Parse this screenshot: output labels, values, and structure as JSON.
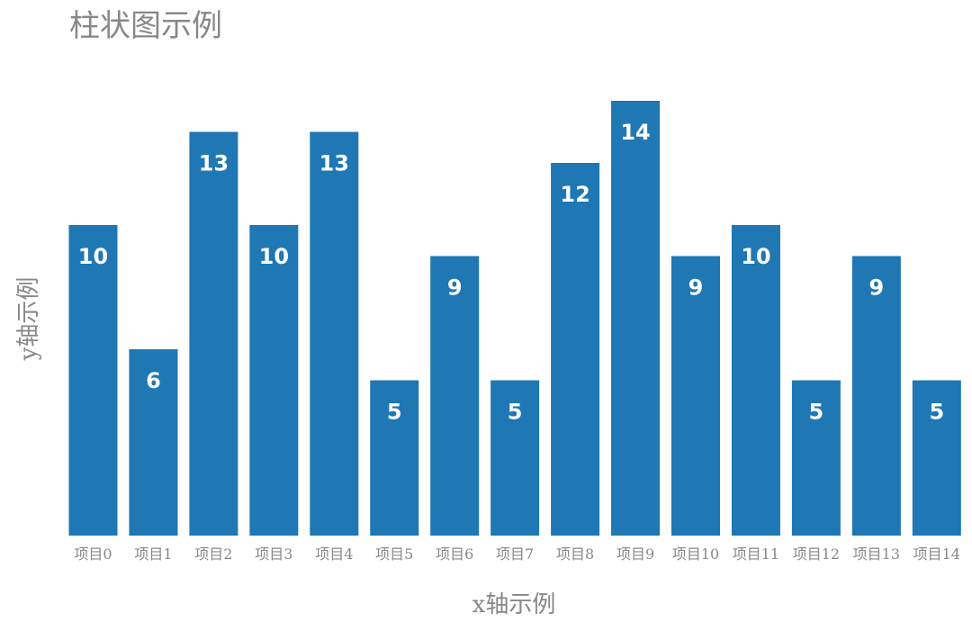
{
  "chart_data": {
    "type": "bar",
    "title": "柱状图示例",
    "xlabel": "x轴示例",
    "ylabel": "y轴示例",
    "categories": [
      "项目0",
      "项目1",
      "项目2",
      "项目3",
      "项目4",
      "项目5",
      "项目6",
      "项目7",
      "项目8",
      "项目9",
      "项目10",
      "项目11",
      "项目12",
      "项目13",
      "项目14"
    ],
    "values": [
      10,
      6,
      13,
      10,
      13,
      5,
      9,
      5,
      12,
      14,
      9,
      10,
      5,
      9,
      5
    ],
    "ylim": [
      0,
      14
    ],
    "y_ticks_visible": false,
    "grid": false,
    "legend": "none",
    "data_labels": "inside-top",
    "colors": {
      "bar": "#1f77b4",
      "value_label": "#ffffff",
      "text": "#888888"
    }
  }
}
